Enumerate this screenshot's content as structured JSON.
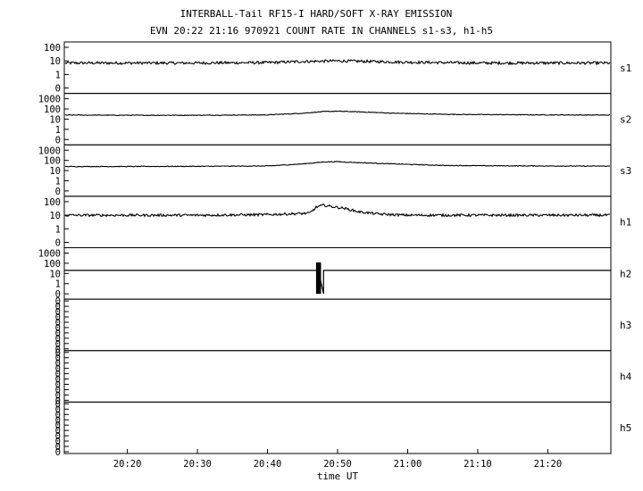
{
  "chart_data": {
    "type": "line",
    "title": "INTERBALL-Tail RF15-I HARD/SOFT X-RAY EMISSION",
    "subtitle": "EVN 20:22 21:16 970921  COUNT RATE IN CHANNELS s1-s3, h1-h5",
    "xlabel": "time UT",
    "x_ticks": [
      "20:20",
      "20:30",
      "20:40",
      "20:50",
      "21:00",
      "21:10",
      "21:20"
    ],
    "xlim": [
      "20:11",
      "21:29"
    ],
    "grid": false,
    "panels": [
      {
        "name": "s1",
        "yscale": "log",
        "y_tick_labels": [
          "100",
          "10",
          "1",
          "0"
        ],
        "series": [
          {
            "x": [
              "20:11",
              "20:20",
              "20:30",
              "20:40",
              "20:45",
              "20:50",
              "20:55",
              "21:00",
              "21:10",
              "21:20",
              "21:29"
            ],
            "y": [
              7,
              7,
              7,
              7.5,
              9,
              10,
              9,
              8,
              7,
              7,
              7
            ]
          }
        ]
      },
      {
        "name": "s2",
        "yscale": "log",
        "y_tick_labels": [
          "1000",
          "100",
          "10",
          "1",
          "0"
        ],
        "series": [
          {
            "x": [
              "20:11",
              "20:20",
              "20:30",
              "20:40",
              "20:45",
              "20:48",
              "20:50",
              "20:53",
              "20:58",
              "21:05",
              "21:10",
              "21:20",
              "21:29"
            ],
            "y": [
              25,
              24,
              24,
              26,
              38,
              55,
              60,
              52,
              38,
              30,
              28,
              26,
              25
            ]
          }
        ]
      },
      {
        "name": "s3",
        "yscale": "log",
        "y_tick_labels": [
          "1000",
          "100",
          "10",
          "1",
          "0"
        ],
        "series": [
          {
            "x": [
              "20:11",
              "20:20",
              "20:30",
              "20:40",
              "20:45",
              "20:48",
              "20:50",
              "20:53",
              "20:58",
              "21:05",
              "21:10",
              "21:20",
              "21:29"
            ],
            "y": [
              25,
              25,
              26,
              28,
              45,
              70,
              75,
              60,
              45,
              32,
              30,
              28,
              27
            ]
          }
        ]
      },
      {
        "name": "h1",
        "yscale": "log",
        "y_tick_labels": [
          "100",
          "10",
          "1",
          "0"
        ],
        "series": [
          {
            "x": [
              "20:11",
              "20:20",
              "20:30",
              "20:40",
              "20:46",
              "20:47",
              "20:48",
              "20:49",
              "20:51",
              "20:53",
              "20:56",
              "21:00",
              "21:10",
              "21:20",
              "21:29"
            ],
            "y": [
              10,
              10,
              10,
              11,
              14,
              40,
              55,
              45,
              32,
              18,
              12,
              10,
              10,
              10,
              10
            ]
          }
        ]
      },
      {
        "name": "h2",
        "yscale": "log",
        "y_tick_labels": [
          "1000",
          "100",
          "10",
          "1",
          "0"
        ],
        "series": [
          {
            "x": [
              "20:11",
              "20:47",
              "20:47",
              "20:47",
              "20:48",
              "20:48",
              "21:29"
            ],
            "y": [
              20,
              20,
              0,
              120,
              0,
              20,
              20
            ]
          }
        ]
      },
      {
        "name": "h3",
        "yscale": "linear",
        "y_tick_labels": [
          "0",
          "0",
          "0",
          "0",
          "0",
          "0",
          "0",
          "0",
          "0",
          "0"
        ],
        "series": []
      },
      {
        "name": "h4",
        "yscale": "linear",
        "y_tick_labels": [
          "0",
          "0",
          "0",
          "0",
          "0",
          "0",
          "0",
          "0",
          "0",
          "0"
        ],
        "series": []
      },
      {
        "name": "h5",
        "yscale": "linear",
        "y_tick_labels": [
          "0",
          "0",
          "0",
          "0",
          "0",
          "0",
          "0",
          "0",
          "0",
          "0"
        ],
        "series": []
      }
    ]
  }
}
